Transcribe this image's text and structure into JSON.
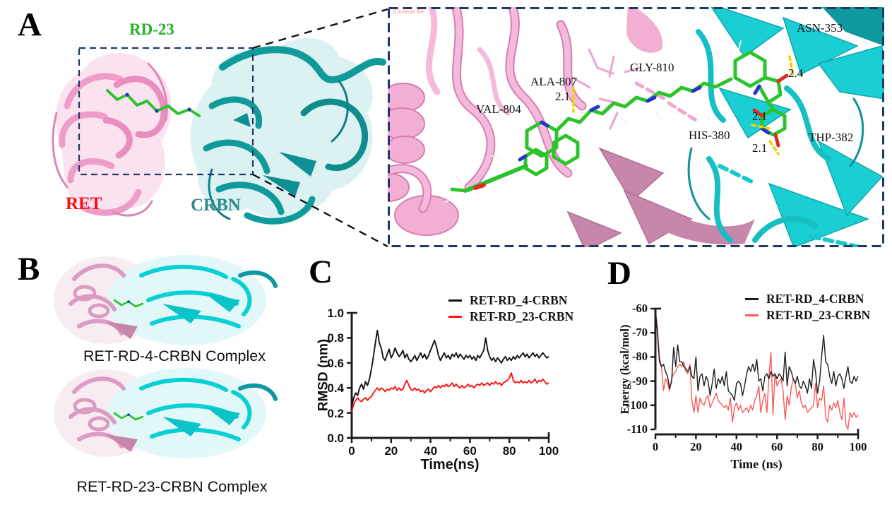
{
  "figure": {
    "panel_labels": [
      "A",
      "B",
      "C",
      "D"
    ],
    "panel_a": {
      "ligand_label": "RD-23",
      "left_protein_label": "RET",
      "right_protein_label": "CRBN",
      "inset": {
        "watermark": "d license file",
        "residues": [
          "VAL-804",
          "ALA-807",
          "GLY-810",
          "ASN-353",
          "HIS-380",
          "THP-382"
        ],
        "distances": [
          "2.1",
          "2.4",
          "2.1",
          "2.1"
        ]
      }
    },
    "panel_b": {
      "captions": [
        "RET-RD-4-CRBN Complex",
        "RET-RD-23-CRBN Complex"
      ]
    }
  },
  "colors": {
    "ret_pink": "#f0a5ce",
    "ret_pink_dark": "#c687ab",
    "crbn_teal": "#119a9a",
    "crbn_cyan": "#19cfd4",
    "ligand_green": "#2dc32d",
    "nitrogen_blue": "#2633c8",
    "oxygen_red": "#d93025",
    "hbond_yellow": "#ecd500",
    "box_navy": "#1f3864",
    "label_red": "#fb0f0f",
    "label_green": "#29b129",
    "label_teal": "#2e8b8b",
    "series_black": "#141414",
    "series_red_c": "#fb1414",
    "series_red_d": "#fa5a5a"
  },
  "chart_data": [
    {
      "type": "line",
      "panel": "C",
      "title": "",
      "xlabel": "Time(ns)",
      "ylabel": "RMSD (nm)",
      "xlim": [
        0,
        100
      ],
      "ylim": [
        0.0,
        1.0
      ],
      "grid": false,
      "legend_position": "top-right",
      "line_width": 1.9,
      "x_step": 1,
      "xticks": [
        {
          "v": 0,
          "label": "0"
        },
        {
          "v": 20,
          "label": "20"
        },
        {
          "v": 40,
          "label": "40"
        },
        {
          "v": 60,
          "label": "60"
        },
        {
          "v": 80,
          "label": "80"
        },
        {
          "v": 100,
          "label": "100"
        }
      ],
      "yticks": [
        {
          "v": 0.0,
          "label": "0.0"
        },
        {
          "v": 0.2,
          "label": "0.2"
        },
        {
          "v": 0.4,
          "label": "0.4"
        },
        {
          "v": 0.6,
          "label": "0.6"
        },
        {
          "v": 0.8,
          "label": "0.8"
        },
        {
          "v": 1.0,
          "label": "1.0"
        }
      ],
      "xminor": [
        10,
        30,
        50,
        70,
        90
      ],
      "series": [
        {
          "name": "RET-RD_4-CRBN",
          "color": "#141414",
          "values": [
            0.25,
            0.32,
            0.36,
            0.34,
            0.4,
            0.43,
            0.39,
            0.45,
            0.42,
            0.47,
            0.55,
            0.65,
            0.76,
            0.86,
            0.76,
            0.72,
            0.64,
            0.62,
            0.67,
            0.71,
            0.64,
            0.67,
            0.72,
            0.68,
            0.65,
            0.67,
            0.7,
            0.64,
            0.67,
            0.63,
            0.61,
            0.63,
            0.66,
            0.62,
            0.65,
            0.68,
            0.64,
            0.67,
            0.63,
            0.66,
            0.7,
            0.74,
            0.78,
            0.73,
            0.66,
            0.62,
            0.65,
            0.68,
            0.64,
            0.66,
            0.63,
            0.67,
            0.65,
            0.68,
            0.64,
            0.67,
            0.65,
            0.63,
            0.66,
            0.64,
            0.66,
            0.63,
            0.65,
            0.62,
            0.66,
            0.64,
            0.67,
            0.7,
            0.8,
            0.7,
            0.65,
            0.62,
            0.64,
            0.61,
            0.64,
            0.62,
            0.6,
            0.63,
            0.65,
            0.62,
            0.64,
            0.62,
            0.65,
            0.63,
            0.66,
            0.64,
            0.66,
            0.68,
            0.65,
            0.67,
            0.64,
            0.66,
            0.68,
            0.65,
            0.67,
            0.64,
            0.66,
            0.68,
            0.66,
            0.64,
            0.65
          ]
        },
        {
          "name": "RET-RD_23-CRBN",
          "color": "#fb1414",
          "values": [
            0.21,
            0.27,
            0.3,
            0.32,
            0.3,
            0.29,
            0.31,
            0.32,
            0.3,
            0.32,
            0.33,
            0.36,
            0.38,
            0.4,
            0.38,
            0.4,
            0.39,
            0.37,
            0.39,
            0.38,
            0.4,
            0.39,
            0.41,
            0.38,
            0.4,
            0.38,
            0.39,
            0.43,
            0.46,
            0.42,
            0.39,
            0.38,
            0.4,
            0.38,
            0.39,
            0.37,
            0.38,
            0.36,
            0.38,
            0.39,
            0.37,
            0.39,
            0.41,
            0.4,
            0.42,
            0.4,
            0.42,
            0.41,
            0.43,
            0.41,
            0.42,
            0.44,
            0.41,
            0.43,
            0.41,
            0.4,
            0.42,
            0.4,
            0.41,
            0.43,
            0.41,
            0.42,
            0.4,
            0.42,
            0.43,
            0.42,
            0.44,
            0.42,
            0.43,
            0.44,
            0.42,
            0.44,
            0.43,
            0.45,
            0.43,
            0.44,
            0.42,
            0.44,
            0.45,
            0.46,
            0.48,
            0.52,
            0.46,
            0.44,
            0.45,
            0.44,
            0.46,
            0.44,
            0.45,
            0.44,
            0.46,
            0.44,
            0.45,
            0.47,
            0.44,
            0.46,
            0.45,
            0.47,
            0.45,
            0.43,
            0.44
          ]
        }
      ]
    },
    {
      "type": "line",
      "panel": "D",
      "title": "",
      "xlabel": "Time (ns)",
      "ylabel": "Energy (kcal/mol)",
      "xlim": [
        0,
        100
      ],
      "ylim": [
        -110,
        -60
      ],
      "grid": false,
      "legend_position": "top-right",
      "line_width": 1.4,
      "x_step": 1,
      "xticks": [
        {
          "v": 0,
          "label": "0"
        },
        {
          "v": 20,
          "label": "20"
        },
        {
          "v": 40,
          "label": "40"
        },
        {
          "v": 60,
          "label": "60"
        },
        {
          "v": 80,
          "label": "80"
        },
        {
          "v": 100,
          "label": "100"
        }
      ],
      "yticks": [
        {
          "v": -60,
          "label": "-60"
        },
        {
          "v": -70,
          "label": "-70"
        },
        {
          "v": -80,
          "label": "-80"
        },
        {
          "v": -90,
          "label": "-90"
        },
        {
          "v": -100,
          "label": "-100"
        },
        {
          "v": -110,
          "label": "-110"
        }
      ],
      "xminor": [
        10,
        30,
        50,
        70,
        90
      ],
      "series": [
        {
          "name": "RET-RD_4-CRBN",
          "color": "#1c1c1c",
          "values": [
            -60,
            -70,
            -82,
            -84,
            -83,
            -86,
            -88,
            -93,
            -90,
            -76,
            -84,
            -75,
            -82,
            -82,
            -84,
            -85,
            -86,
            -84,
            -88,
            -89,
            -80,
            -94,
            -88,
            -87,
            -92,
            -88,
            -90,
            -96,
            -91,
            -85,
            -93,
            -89,
            -91,
            -88,
            -92,
            -86,
            -94,
            -95,
            -96,
            -98,
            -91,
            -90,
            -91,
            -96,
            -92,
            -87,
            -84,
            -86,
            -83,
            -86,
            -81,
            -90,
            -89,
            -94,
            -88,
            -87,
            -89,
            -86,
            -88,
            -87,
            -89,
            -87,
            -88,
            -90,
            -78,
            -92,
            -84,
            -86,
            -89,
            -91,
            -88,
            -92,
            -93,
            -90,
            -92,
            -95,
            -89,
            -93,
            -81,
            -86,
            -95,
            -90,
            -80,
            -71,
            -82,
            -83,
            -88,
            -91,
            -86,
            -92,
            -88,
            -87,
            -89,
            -93,
            -88,
            -84,
            -90,
            -91,
            -88,
            -90,
            -88
          ]
        },
        {
          "name": "RET-RD_23-CRBN",
          "color": "#fa5a5a",
          "values": [
            -61,
            -68,
            -80,
            -84,
            -94,
            -89,
            -91,
            -94,
            -89,
            -87,
            -86,
            -84,
            -83,
            -84,
            -82,
            -86,
            -87,
            -83,
            -98,
            -103,
            -96,
            -103,
            -97,
            -99,
            -100,
            -97,
            -96,
            -101,
            -99,
            -97,
            -95,
            -98,
            -99,
            -100,
            -101,
            -100,
            -102,
            -97,
            -107,
            -101,
            -99,
            -102,
            -100,
            -103,
            -102,
            -101,
            -103,
            -100,
            -102,
            -98,
            -96,
            -92,
            -103,
            -98,
            -95,
            -103,
            -88,
            -78,
            -104,
            -87,
            -92,
            -90,
            -89,
            -94,
            -106,
            -96,
            -100,
            -93,
            -89,
            -91,
            -97,
            -94,
            -99,
            -101,
            -100,
            -103,
            -102,
            -101,
            -100,
            -91,
            -101,
            -97,
            -98,
            -92,
            -105,
            -107,
            -100,
            -102,
            -99,
            -101,
            -98,
            -103,
            -106,
            -97,
            -108,
            -110,
            -103,
            -105,
            -103,
            -105,
            -104
          ]
        }
      ]
    }
  ]
}
